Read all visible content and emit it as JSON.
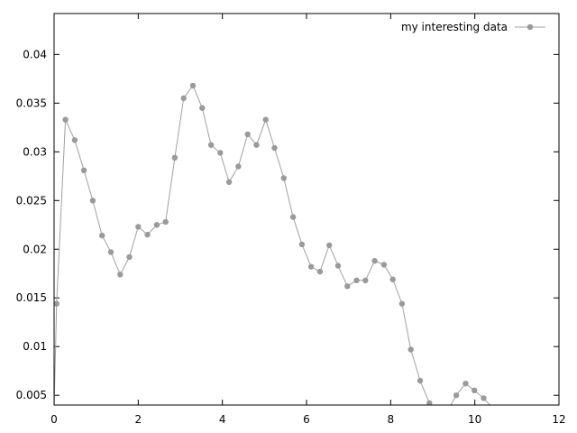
{
  "chart_data": {
    "type": "line",
    "title": "",
    "xlabel": "",
    "ylabel": "",
    "xlim": [
      0,
      12
    ],
    "ylim": [
      0.004,
      0.0442
    ],
    "x_ticks": [
      0,
      2,
      4,
      6,
      8,
      10,
      12
    ],
    "x_tick_labels": [
      "0",
      "2",
      "4",
      "6",
      "8",
      "10",
      "12"
    ],
    "y_ticks": [
      0.005,
      0.01,
      0.015,
      0.02,
      0.025,
      0.03,
      0.035,
      0.04
    ],
    "y_tick_labels": [
      "0.005",
      "0.01",
      "0.015",
      "0.02",
      "0.025",
      "0.03",
      "0.035",
      "0.04"
    ],
    "grid": false,
    "legend_position": "top-right",
    "series_color": "#a0a0a0",
    "marker_color": "#9a9a9a",
    "series": [
      {
        "name": "my interesting data",
        "x": [
          0.0,
          0.06,
          0.27,
          0.49,
          0.71,
          0.92,
          1.14,
          1.35,
          1.57,
          1.79,
          2.0,
          2.22,
          2.44,
          2.65,
          2.87,
          3.08,
          3.3,
          3.52,
          3.73,
          3.95,
          4.16,
          4.38,
          4.6,
          4.81,
          5.03,
          5.24,
          5.46,
          5.68,
          5.89,
          6.11,
          6.32,
          6.54,
          6.75,
          6.97,
          7.19,
          7.4,
          7.62,
          7.84,
          8.05,
          8.27,
          8.48,
          8.7,
          8.92,
          9.1,
          9.3,
          9.56,
          9.78,
          9.99,
          10.21,
          10.4
        ],
        "y": [
          0.0036,
          0.0144,
          0.0333,
          0.0312,
          0.0281,
          0.025,
          0.0214,
          0.0197,
          0.0174,
          0.0192,
          0.0223,
          0.0215,
          0.0225,
          0.0228,
          0.0294,
          0.0355,
          0.0368,
          0.0345,
          0.0307,
          0.0299,
          0.0269,
          0.0285,
          0.0318,
          0.0307,
          0.0333,
          0.0304,
          0.0273,
          0.0233,
          0.0205,
          0.0182,
          0.0177,
          0.0204,
          0.0183,
          0.0162,
          0.0168,
          0.0168,
          0.0188,
          0.0184,
          0.0169,
          0.0144,
          0.0097,
          0.0065,
          0.0042,
          0.0025,
          0.003,
          0.005,
          0.0062,
          0.0055,
          0.0047,
          0.0038
        ],
        "markers": [
          false,
          true,
          true,
          true,
          true,
          true,
          true,
          true,
          true,
          true,
          true,
          true,
          true,
          true,
          true,
          true,
          true,
          true,
          true,
          true,
          true,
          true,
          true,
          true,
          true,
          true,
          true,
          true,
          true,
          true,
          true,
          true,
          true,
          true,
          true,
          true,
          true,
          true,
          true,
          true,
          true,
          true,
          true,
          false,
          false,
          true,
          true,
          true,
          true,
          false
        ]
      }
    ]
  }
}
